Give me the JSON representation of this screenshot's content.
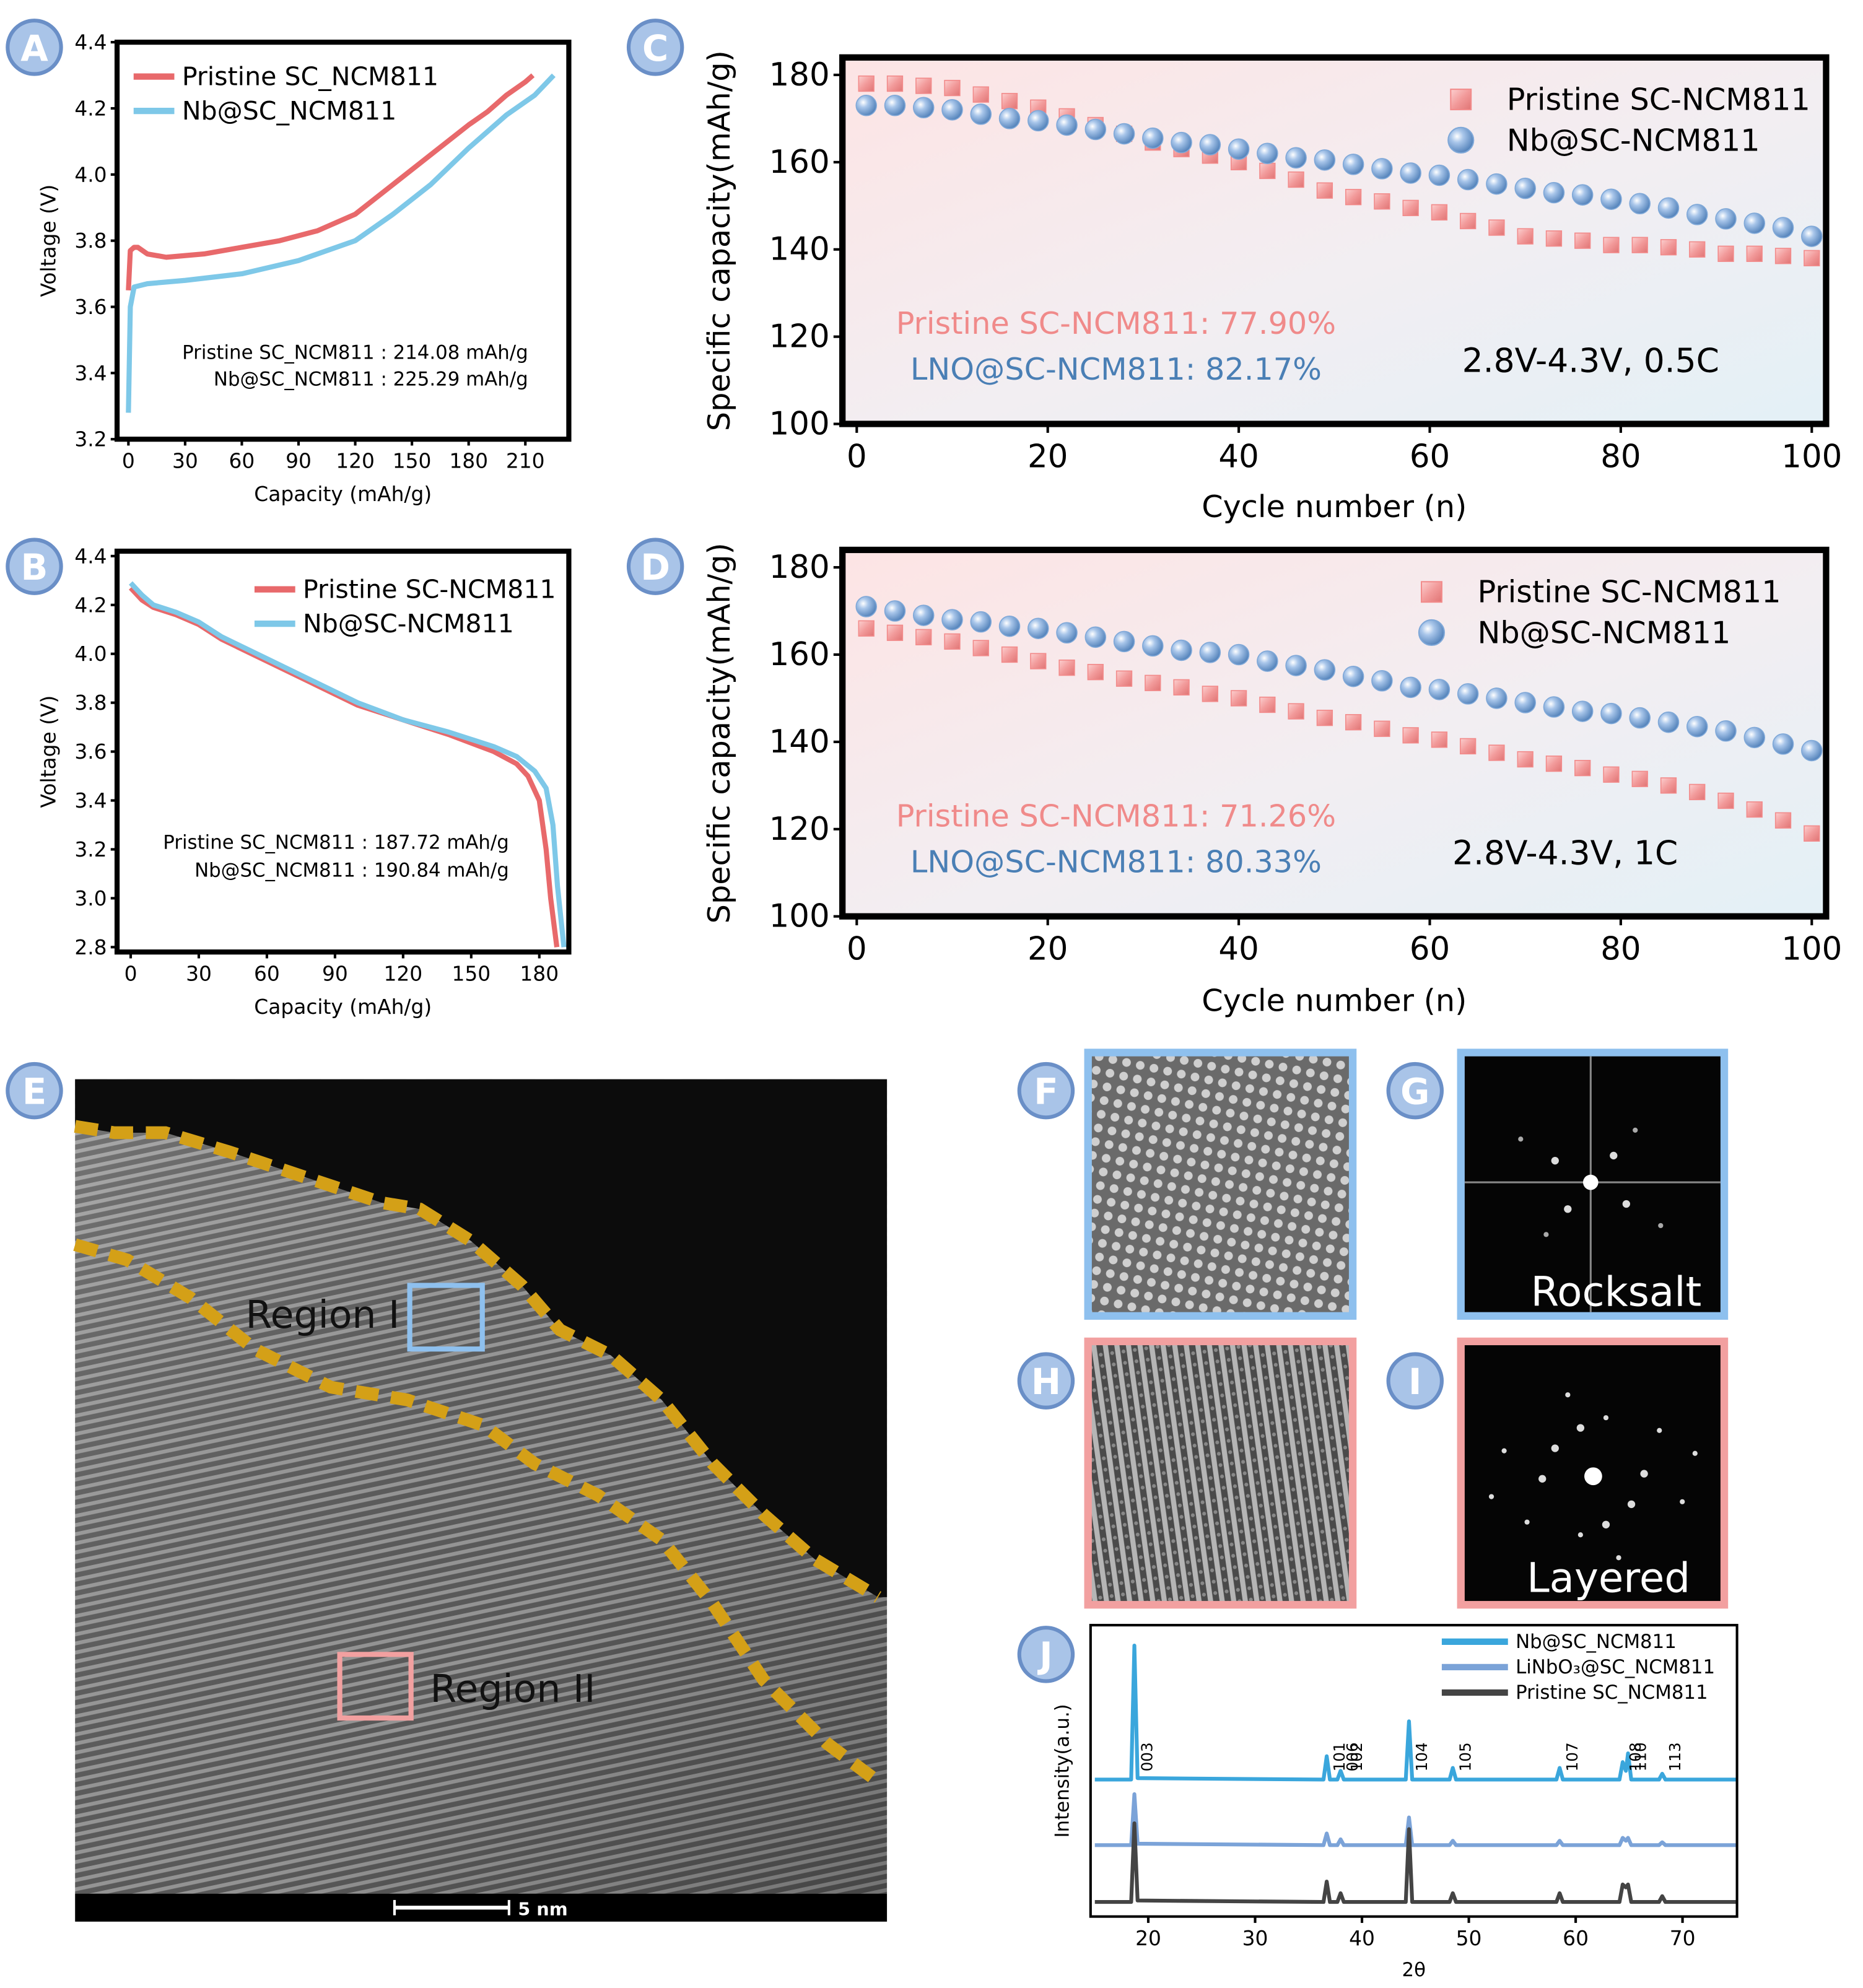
{
  "panel_labels": [
    "A",
    "B",
    "C",
    "D",
    "E",
    "F",
    "G",
    "H",
    "I",
    "J"
  ],
  "chart_data": [
    {
      "type": "line",
      "x_label": "Capacity (mAh/g)",
      "y_label": "Voltage (V)",
      "xlim": [
        -6,
        233
      ],
      "ylim": [
        3.2,
        4.4
      ],
      "xticks": [
        0,
        30,
        60,
        90,
        120,
        150,
        180,
        210
      ],
      "yticks": [
        3.2,
        3.4,
        3.6,
        3.8,
        {
          "value": 4,
          "label": "4.0"
        },
        4.2,
        4.4
      ],
      "legend": "upper left",
      "series": [
        {
          "name": "Pristine SC_NCM811",
          "color": "#e8696b",
          "x": [
            0,
            1,
            3,
            5,
            10,
            20,
            40,
            60,
            80,
            100,
            120,
            140,
            160,
            180,
            190,
            200,
            210,
            214
          ],
          "values": [
            3.65,
            3.77,
            3.78,
            3.78,
            3.76,
            3.75,
            3.76,
            3.78,
            3.8,
            3.83,
            3.88,
            3.97,
            4.06,
            4.15,
            4.19,
            4.24,
            4.28,
            4.3
          ]
        },
        {
          "name": "Nb@SC_NCM811",
          "color": "#7ec8e8",
          "x": [
            0,
            1,
            3,
            10,
            30,
            60,
            90,
            120,
            140,
            160,
            180,
            200,
            215,
            225
          ],
          "values": [
            3.28,
            3.6,
            3.66,
            3.67,
            3.68,
            3.7,
            3.74,
            3.8,
            3.88,
            3.97,
            4.08,
            4.18,
            4.24,
            4.3
          ]
        }
      ],
      "annotations": [
        "Pristine SC_NCM811 : 214.08 mAh/g",
        "Nb@SC_NCM811 : 225.29 mAh/g"
      ]
    },
    {
      "type": "line",
      "x_label": "Capacity (mAh/g)",
      "y_label": "Voltage (V)",
      "xlim": [
        -6,
        193
      ],
      "ylim": [
        2.78,
        4.42
      ],
      "xticks": [
        0,
        30,
        60,
        90,
        120,
        150,
        180
      ],
      "yticks": [
        2.8,
        {
          "value": 3,
          "label": "3.0"
        },
        3.2,
        3.4,
        3.6,
        3.8,
        {
          "value": 4,
          "label": "4.0"
        },
        4.2,
        4.4
      ],
      "legend": "upper right",
      "series": [
        {
          "name": "Pristine SC-NCM811",
          "color": "#e8696b",
          "x": [
            0,
            5,
            10,
            20,
            30,
            40,
            60,
            80,
            100,
            120,
            140,
            160,
            170,
            175,
            180,
            183,
            185,
            187.72
          ],
          "values": [
            4.27,
            4.22,
            4.19,
            4.16,
            4.12,
            4.06,
            3.97,
            3.88,
            3.79,
            3.73,
            3.67,
            3.6,
            3.55,
            3.5,
            3.4,
            3.2,
            3.0,
            2.8
          ]
        },
        {
          "name": "Nb@SC-NCM811",
          "color": "#7ec8e8",
          "x": [
            0,
            5,
            10,
            20,
            30,
            40,
            60,
            80,
            100,
            120,
            140,
            160,
            170,
            178,
            183,
            186,
            188,
            190.84
          ],
          "values": [
            4.29,
            4.24,
            4.2,
            4.17,
            4.13,
            4.07,
            3.98,
            3.89,
            3.8,
            3.73,
            3.68,
            3.62,
            3.58,
            3.52,
            3.45,
            3.3,
            3.05,
            2.8
          ]
        }
      ],
      "annotations": [
        "Pristine SC_NCM811 : 187.72 mAh/g",
        "Nb@SC_NCM811 : 190.84 mAh/g"
      ]
    },
    {
      "type": "scatter",
      "x_label": "Cycle number (n)",
      "y_label": "Specific capacity(mAh/g)",
      "xlim": [
        -1.5,
        101.5
      ],
      "ylim": [
        100,
        184
      ],
      "xticks": [
        0,
        20,
        40,
        60,
        80,
        100
      ],
      "yticks": [
        100,
        120,
        140,
        160,
        180
      ],
      "legend": "upper right",
      "x": [
        1,
        4,
        7,
        10,
        13,
        16,
        19,
        22,
        25,
        28,
        31,
        34,
        37,
        40,
        43,
        46,
        49,
        52,
        55,
        58,
        61,
        64,
        67,
        70,
        73,
        76,
        79,
        82,
        85,
        88,
        91,
        94,
        97,
        100
      ],
      "series": [
        {
          "name": "Pristine SC-NCM811",
          "color": "#f28b8b",
          "marker": "square",
          "values": [
            178,
            178,
            177.5,
            177,
            175.5,
            174,
            172.5,
            170.5,
            168.5,
            166.5,
            164.5,
            163,
            161.5,
            160,
            158,
            156,
            153.5,
            152,
            151,
            149.5,
            148.5,
            146.5,
            145,
            143,
            142.5,
            142,
            141,
            141,
            140.5,
            140,
            139,
            139,
            138.5,
            138
          ]
        },
        {
          "name": "Nb@SC-NCM811",
          "color": "#7fa8d8",
          "marker": "circle",
          "values": [
            173,
            173,
            172.5,
            172,
            171,
            170,
            169.5,
            168.5,
            167.5,
            166.5,
            165.5,
            164.5,
            164,
            163,
            162,
            161,
            160.5,
            159.5,
            158.5,
            157.5,
            157,
            156,
            155,
            154,
            153,
            152.5,
            151.5,
            150.5,
            149.5,
            148,
            147,
            146,
            145,
            143
          ]
        }
      ],
      "annotations": [
        {
          "text": "Pristine SC-NCM811: 77.90%",
          "color": "#f08a8a"
        },
        {
          "text": "LNO@SC-NCM811: 82.17%",
          "color": "#4a7fb5"
        }
      ],
      "condition": "2.8V-4.3V, 0.5C"
    },
    {
      "type": "scatter",
      "x_label": "Cycle number (n)",
      "y_label": "Specific capacity(mAh/g)",
      "xlim": [
        -1.5,
        101.5
      ],
      "ylim": [
        100,
        184
      ],
      "xticks": [
        0,
        20,
        40,
        60,
        80,
        100
      ],
      "yticks": [
        100,
        120,
        140,
        160,
        180
      ],
      "legend": "upper right",
      "x": [
        1,
        4,
        7,
        10,
        13,
        16,
        19,
        22,
        25,
        28,
        31,
        34,
        37,
        40,
        43,
        46,
        49,
        52,
        55,
        58,
        61,
        64,
        67,
        70,
        73,
        76,
        79,
        82,
        85,
        88,
        91,
        94,
        97,
        100
      ],
      "series": [
        {
          "name": "Pristine SC-NCM811",
          "color": "#f28b8b",
          "marker": "square",
          "values": [
            166,
            165,
            164,
            163,
            161.5,
            160,
            158.5,
            157,
            156,
            154.5,
            153.5,
            152.5,
            151,
            150,
            148.5,
            147,
            145.5,
            144.5,
            143,
            141.5,
            140.5,
            139,
            137.5,
            136,
            135,
            134,
            132.5,
            131.5,
            130,
            128.5,
            126.5,
            124.5,
            122,
            119
          ]
        },
        {
          "name": "Nb@SC-NCM811",
          "color": "#7fa8d8",
          "marker": "circle",
          "values": [
            171,
            170,
            169,
            168,
            167.5,
            166.5,
            166,
            165,
            164,
            163,
            162,
            161,
            160.5,
            160,
            158.5,
            157.5,
            156.5,
            155,
            154,
            152.5,
            152,
            151,
            150,
            149,
            148,
            147,
            146.5,
            145.5,
            144.5,
            143.5,
            142.5,
            141,
            139.5,
            138
          ]
        }
      ],
      "annotations": [
        {
          "text": "Pristine SC-NCM811: 71.26%",
          "color": "#f08a8a"
        },
        {
          "text": "LNO@SC-NCM811: 80.33%",
          "color": "#4a7fb5"
        }
      ],
      "condition": "2.8V-4.3V, 1C"
    },
    {
      "type": "line",
      "x_label": "2θ",
      "y_label": "Intensity(a.u.)",
      "xlim": [
        14.6,
        75.1
      ],
      "ylim": [
        0,
        100
      ],
      "xticks": [
        20,
        30,
        40,
        50,
        60,
        70
      ],
      "legend": "upper right",
      "x": [
        15,
        18.4,
        18.7,
        19.0,
        36.4,
        36.7,
        37.0,
        37.7,
        38.0,
        38.3,
        44.1,
        44.4,
        44.7,
        48.2,
        48.5,
        48.8,
        58.2,
        58.5,
        58.8,
        64.1,
        64.4,
        64.7,
        64.9,
        65.2,
        67.8,
        68.1,
        68.4,
        75
      ],
      "series": [
        {
          "name": "Nb@SC_NCM811",
          "color": "#3aa6dc",
          "values": [
            47,
            47,
            93,
            47.5,
            47,
            55,
            47,
            47,
            50,
            47,
            47,
            67,
            47,
            47,
            51,
            47,
            47,
            51,
            47,
            47,
            53,
            50,
            56,
            47,
            47,
            49,
            47,
            47
          ]
        },
        {
          "name": "LiNbO₃@SC_NCM811",
          "color": "#7ba3d8",
          "values": [
            24.5,
            24.5,
            42,
            25,
            24.5,
            28.5,
            24.5,
            24.5,
            26.5,
            24.5,
            24.5,
            34,
            24.5,
            24.5,
            26,
            24.5,
            24.5,
            26,
            24.5,
            24.5,
            27,
            26,
            27,
            24.5,
            24.5,
            25.5,
            24.5,
            24.5
          ]
        },
        {
          "name": "Pristine SC_NCM811",
          "color": "#444444",
          "values": [
            5,
            5,
            32,
            5.5,
            5,
            12,
            5,
            5,
            8,
            5,
            5,
            30,
            5,
            5,
            8,
            5,
            5,
            8,
            5,
            5,
            11,
            10,
            11,
            5,
            5,
            7,
            5,
            5
          ]
        }
      ],
      "peak_labels": [
        {
          "label": "003",
          "x": 18.7
        },
        {
          "label": "101",
          "x": 36.7
        },
        {
          "label": "006",
          "x": 37.9
        },
        {
          "label": "102",
          "x": 38.3
        },
        {
          "label": "104",
          "x": 44.4
        },
        {
          "label": "105",
          "x": 48.5
        },
        {
          "label": "107",
          "x": 58.5
        },
        {
          "label": "108",
          "x": 64.4
        },
        {
          "label": "110",
          "x": 64.9
        },
        {
          "label": "113",
          "x": 68.1
        }
      ]
    }
  ],
  "micrographs": {
    "region_1": "Region I",
    "region_2": "Region II",
    "scale_bar": "5 nm",
    "fft_1": "Rocksalt",
    "fft_2": "Layered"
  }
}
